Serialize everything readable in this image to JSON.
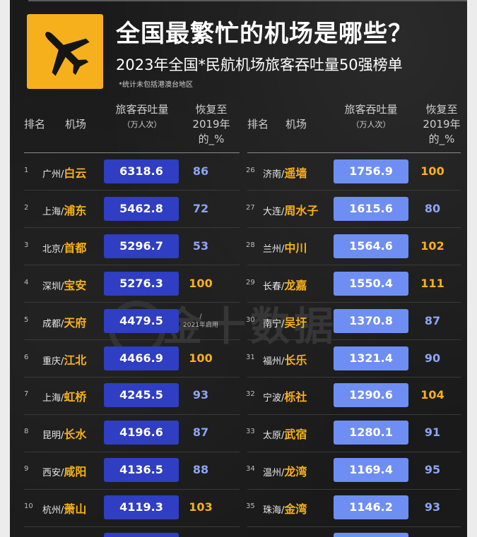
{
  "title": "全国最繁忙的机场是哪些？",
  "subtitle": "2023年全国*民航机场旅客吞吐量50强榜单",
  "footnote": "*统计未包括港澳台地区",
  "watermark": "金十数据",
  "headers": {
    "rank": "排名",
    "airport": "机场",
    "throughput": "旅客吞吐量",
    "throughput_unit": "（万人次）",
    "recovery_line1": "恢复至",
    "recovery_line2": "2019年",
    "recovery_line3": "的_%"
  },
  "colors": {
    "accent": "#f6b01c",
    "bar_left": "#2f3ec2",
    "bar_right": "#6f8ef3",
    "recovery_below_100": "#8ea4f4",
    "recovery_100_plus": "#f6b01c"
  },
  "icons": {
    "logo": "airplane-icon"
  },
  "chart_data": {
    "type": "table",
    "title": "2023年全国*民航机场旅客吞吐量50强榜单",
    "columns": [
      "排名",
      "机场",
      "旅客吞吐量（万人次）",
      "恢复至2019年的_%"
    ],
    "rows": [
      {
        "rank": "1",
        "city": "广州/",
        "airport": "白云",
        "value": "6318.6",
        "recovery": "86"
      },
      {
        "rank": "2",
        "city": "上海/",
        "airport": "浦东",
        "value": "5462.8",
        "recovery": "72"
      },
      {
        "rank": "3",
        "city": "北京/",
        "airport": "首都",
        "value": "5296.7",
        "recovery": "53"
      },
      {
        "rank": "4",
        "city": "深圳/",
        "airport": "宝安",
        "value": "5276.3",
        "recovery": "100"
      },
      {
        "rank": "5",
        "city": "成都/",
        "airport": "天府",
        "value": "4479.5",
        "recovery": "",
        "note_line1": "/",
        "note_line2": "2021年启用"
      },
      {
        "rank": "6",
        "city": "重庆/",
        "airport": "江北",
        "value": "4466.9",
        "recovery": "100"
      },
      {
        "rank": "7",
        "city": "上海/",
        "airport": "虹桥",
        "value": "4245.5",
        "recovery": "93"
      },
      {
        "rank": "8",
        "city": "昆明/",
        "airport": "长水",
        "value": "4196.6",
        "recovery": "87"
      },
      {
        "rank": "9",
        "city": "西安/",
        "airport": "咸阳",
        "value": "4136.5",
        "recovery": "88"
      },
      {
        "rank": "10",
        "city": "杭州/",
        "airport": "萧山",
        "value": "4119.3",
        "recovery": "103"
      },
      {
        "rank": "26",
        "city": "济南/",
        "airport": "遥墙",
        "value": "1756.9",
        "recovery": "100"
      },
      {
        "rank": "27",
        "city": "大连/",
        "airport": "周水子",
        "value": "1615.6",
        "recovery": "80"
      },
      {
        "rank": "28",
        "city": "兰州/",
        "airport": "中川",
        "value": "1564.6",
        "recovery": "102"
      },
      {
        "rank": "29",
        "city": "长春/",
        "airport": "龙嘉",
        "value": "1550.4",
        "recovery": "111"
      },
      {
        "rank": "30",
        "city": "南宁/",
        "airport": "吴圩",
        "value": "1370.8",
        "recovery": "87"
      },
      {
        "rank": "31",
        "city": "福州/",
        "airport": "长乐",
        "value": "1321.4",
        "recovery": "90"
      },
      {
        "rank": "32",
        "city": "宁波/",
        "airport": "栎社",
        "value": "1290.6",
        "recovery": "104"
      },
      {
        "rank": "33",
        "city": "太原/",
        "airport": "武宿",
        "value": "1280.1",
        "recovery": "91"
      },
      {
        "rank": "34",
        "city": "温州/",
        "airport": "龙湾",
        "value": "1169.4",
        "recovery": "95"
      },
      {
        "rank": "35",
        "city": "珠海/",
        "airport": "金湾",
        "value": "1146.2",
        "recovery": "93"
      }
    ]
  }
}
